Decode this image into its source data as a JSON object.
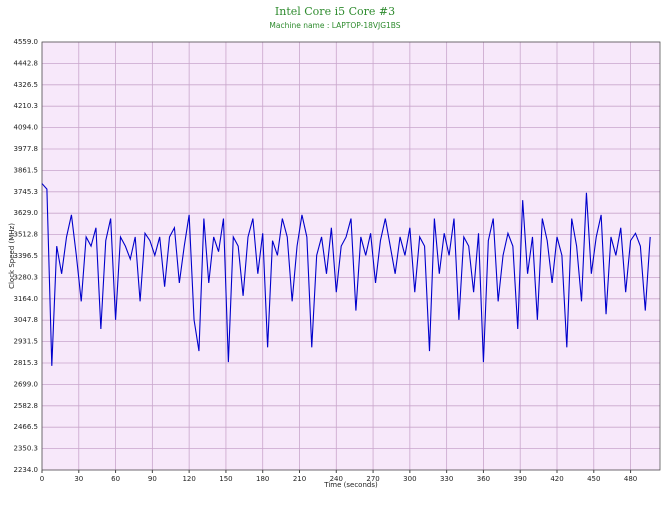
{
  "chart_data": {
    "type": "line",
    "title": "Intel Core i5 Core #3",
    "subtitle": "Machine name : LAPTOP-18VJG1BS",
    "x_label": "Time (seconds)",
    "y_label": "Clock Speed (MHz)",
    "grid": true,
    "background": "#f7e8fa",
    "grid_color": "#c9a6cc",
    "xlim": [
      0,
      504
    ],
    "xticks": [
      0,
      30,
      60,
      90,
      120,
      150,
      180,
      210,
      240,
      270,
      300,
      330,
      360,
      390,
      420,
      450,
      480
    ],
    "ylim": [
      2234,
      4559
    ],
    "yticks": [
      {
        "value": 2234,
        "label": "2234.0"
      },
      {
        "value": 2350.3,
        "label": "2350.3"
      },
      {
        "value": 2466.5,
        "label": "2466.5"
      },
      {
        "value": 2582.8,
        "label": "2582.8"
      },
      {
        "value": 2699,
        "label": "2699.0"
      },
      {
        "value": 2815.3,
        "label": "2815.3"
      },
      {
        "value": 2931.5,
        "label": "2931.5"
      },
      {
        "value": 3047.8,
        "label": "3047.8"
      },
      {
        "value": 3164,
        "label": "3164.0"
      },
      {
        "value": 3280.3,
        "label": "3280.3"
      },
      {
        "value": 3396.5,
        "label": "3396.5"
      },
      {
        "value": 3512.8,
        "label": "3512.8"
      },
      {
        "value": 3629,
        "label": "3629.0"
      },
      {
        "value": 3745.3,
        "label": "3745.3"
      },
      {
        "value": 3861.5,
        "label": "3861.5"
      },
      {
        "value": 3977.8,
        "label": "3977.8"
      },
      {
        "value": 4094,
        "label": "4094.0"
      },
      {
        "value": 4210.3,
        "label": "4210.3"
      },
      {
        "value": 4326.5,
        "label": "4326.5"
      },
      {
        "value": 4442.8,
        "label": "4442.8"
      },
      {
        "value": 4559,
        "label": "4559.0"
      }
    ],
    "x": [
      0,
      4,
      8,
      12,
      16,
      20,
      24,
      28,
      32,
      36,
      40,
      44,
      48,
      52,
      56,
      60,
      64,
      68,
      72,
      76,
      80,
      84,
      88,
      92,
      96,
      100,
      104,
      108,
      112,
      116,
      120,
      124,
      128,
      132,
      136,
      140,
      144,
      148,
      152,
      156,
      160,
      164,
      168,
      172,
      176,
      180,
      184,
      188,
      192,
      196,
      200,
      204,
      208,
      212,
      216,
      220,
      224,
      228,
      232,
      236,
      240,
      244,
      248,
      252,
      256,
      260,
      264,
      268,
      272,
      276,
      280,
      284,
      288,
      292,
      296,
      300,
      304,
      308,
      312,
      316,
      320,
      324,
      328,
      332,
      336,
      340,
      344,
      348,
      352,
      356,
      360,
      364,
      368,
      372,
      376,
      380,
      384,
      388,
      392,
      396,
      400,
      404,
      408,
      412,
      416,
      420,
      424,
      428,
      432,
      436,
      440,
      444,
      448,
      452,
      456,
      460,
      464,
      468,
      472,
      476,
      480,
      484,
      488,
      492,
      496
    ],
    "series": [
      {
        "name": "Core #3",
        "color": "#0000cc",
        "values": [
          3790,
          3760,
          2800,
          3450,
          3300,
          3500,
          3620,
          3400,
          3150,
          3500,
          3450,
          3550,
          3000,
          3480,
          3600,
          3050,
          3500,
          3450,
          3380,
          3500,
          3150,
          3520,
          3480,
          3400,
          3500,
          3230,
          3500,
          3550,
          3250,
          3450,
          3620,
          3050,
          2880,
          3600,
          3250,
          3500,
          3420,
          3600,
          2820,
          3500,
          3450,
          3180,
          3500,
          3600,
          3300,
          3520,
          2900,
          3480,
          3400,
          3600,
          3500,
          3150,
          3450,
          3620,
          3500,
          2900,
          3400,
          3500,
          3300,
          3550,
          3200,
          3450,
          3500,
          3600,
          3100,
          3500,
          3400,
          3520,
          3250,
          3480,
          3600,
          3450,
          3300,
          3500,
          3400,
          3550,
          3200,
          3500,
          3450,
          2880,
          3600,
          3300,
          3520,
          3400,
          3600,
          3050,
          3500,
          3450,
          3200,
          3520,
          2820,
          3480,
          3600,
          3150,
          3400,
          3520,
          3450,
          3000,
          3700,
          3300,
          3500,
          3050,
          3600,
          3480,
          3250,
          3500,
          3400,
          2900,
          3600,
          3450,
          3150,
          3740,
          3300,
          3500,
          3620,
          3080,
          3500,
          3400,
          3550,
          3200,
          3480,
          3520,
          3450,
          3100,
          3500
        ]
      }
    ]
  }
}
